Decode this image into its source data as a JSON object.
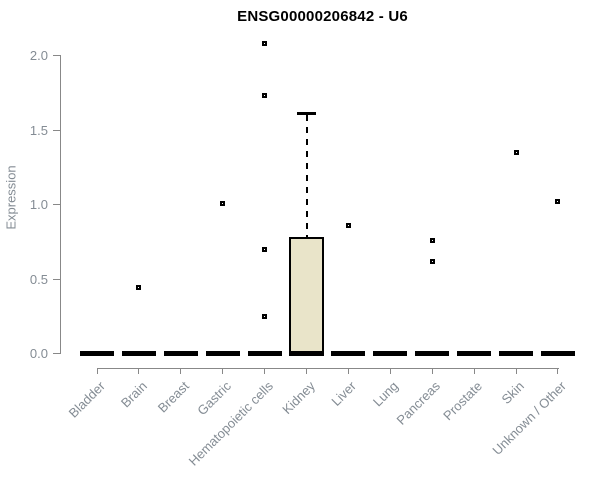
{
  "chart_data": {
    "type": "boxplot",
    "title": "ENSG00000206842 - U6",
    "xlabel": "",
    "ylabel": "Expression",
    "ylim": [
      0,
      2.1
    ],
    "yticks": [
      0.0,
      0.5,
      1.0,
      1.5,
      2.0
    ],
    "grid": false,
    "legend": "none",
    "categories": [
      "Bladder",
      "Brain",
      "Breast",
      "Gastric",
      "Hematopoietic cells",
      "Kidney",
      "Liver",
      "Lung",
      "Pancreas",
      "Prostate",
      "Skin",
      "Unknown / Other"
    ],
    "series": [
      {
        "name": "Bladder",
        "q1": 0,
        "median": 0,
        "q3": 0,
        "whisker_low": 0,
        "whisker_high": 0,
        "outliers": []
      },
      {
        "name": "Brain",
        "q1": 0,
        "median": 0,
        "q3": 0,
        "whisker_low": 0,
        "whisker_high": 0,
        "outliers": [
          0.44
        ]
      },
      {
        "name": "Breast",
        "q1": 0,
        "median": 0,
        "q3": 0,
        "whisker_low": 0,
        "whisker_high": 0,
        "outliers": []
      },
      {
        "name": "Gastric",
        "q1": 0,
        "median": 0,
        "q3": 0,
        "whisker_low": 0,
        "whisker_high": 0,
        "outliers": [
          1.01
        ]
      },
      {
        "name": "Hematopoietic cells",
        "q1": 0,
        "median": 0,
        "q3": 0,
        "whisker_low": 0,
        "whisker_high": 0,
        "outliers": [
          2.08,
          1.73,
          0.7,
          0.25
        ]
      },
      {
        "name": "Kidney",
        "q1": 0,
        "median": 0,
        "q3": 0.78,
        "whisker_low": 0,
        "whisker_high": 1.61,
        "outliers": []
      },
      {
        "name": "Liver",
        "q1": 0,
        "median": 0,
        "q3": 0,
        "whisker_low": 0,
        "whisker_high": 0,
        "outliers": [
          0.86
        ]
      },
      {
        "name": "Lung",
        "q1": 0,
        "median": 0,
        "q3": 0,
        "whisker_low": 0,
        "whisker_high": 0,
        "outliers": []
      },
      {
        "name": "Pancreas",
        "q1": 0,
        "median": 0,
        "q3": 0,
        "whisker_low": 0,
        "whisker_high": 0,
        "outliers": [
          0.76,
          0.62
        ]
      },
      {
        "name": "Prostate",
        "q1": 0,
        "median": 0,
        "q3": 0,
        "whisker_low": 0,
        "whisker_high": 0,
        "outliers": []
      },
      {
        "name": "Skin",
        "q1": 0,
        "median": 0,
        "q3": 0,
        "whisker_low": 0,
        "whisker_high": 0,
        "outliers": [
          1.35
        ]
      },
      {
        "name": "Unknown / Other",
        "q1": 0,
        "median": 0,
        "q3": 0,
        "whisker_low": 0,
        "whisker_high": 0,
        "outliers": [
          1.02
        ]
      }
    ],
    "colors": {
      "box_fill": "#e9e4c9",
      "box_border": "#000000",
      "median_line": "#000000",
      "marker": "#000000",
      "axis_line": "#888888",
      "label_text": "#848c94",
      "title_text": "#000000"
    }
  }
}
